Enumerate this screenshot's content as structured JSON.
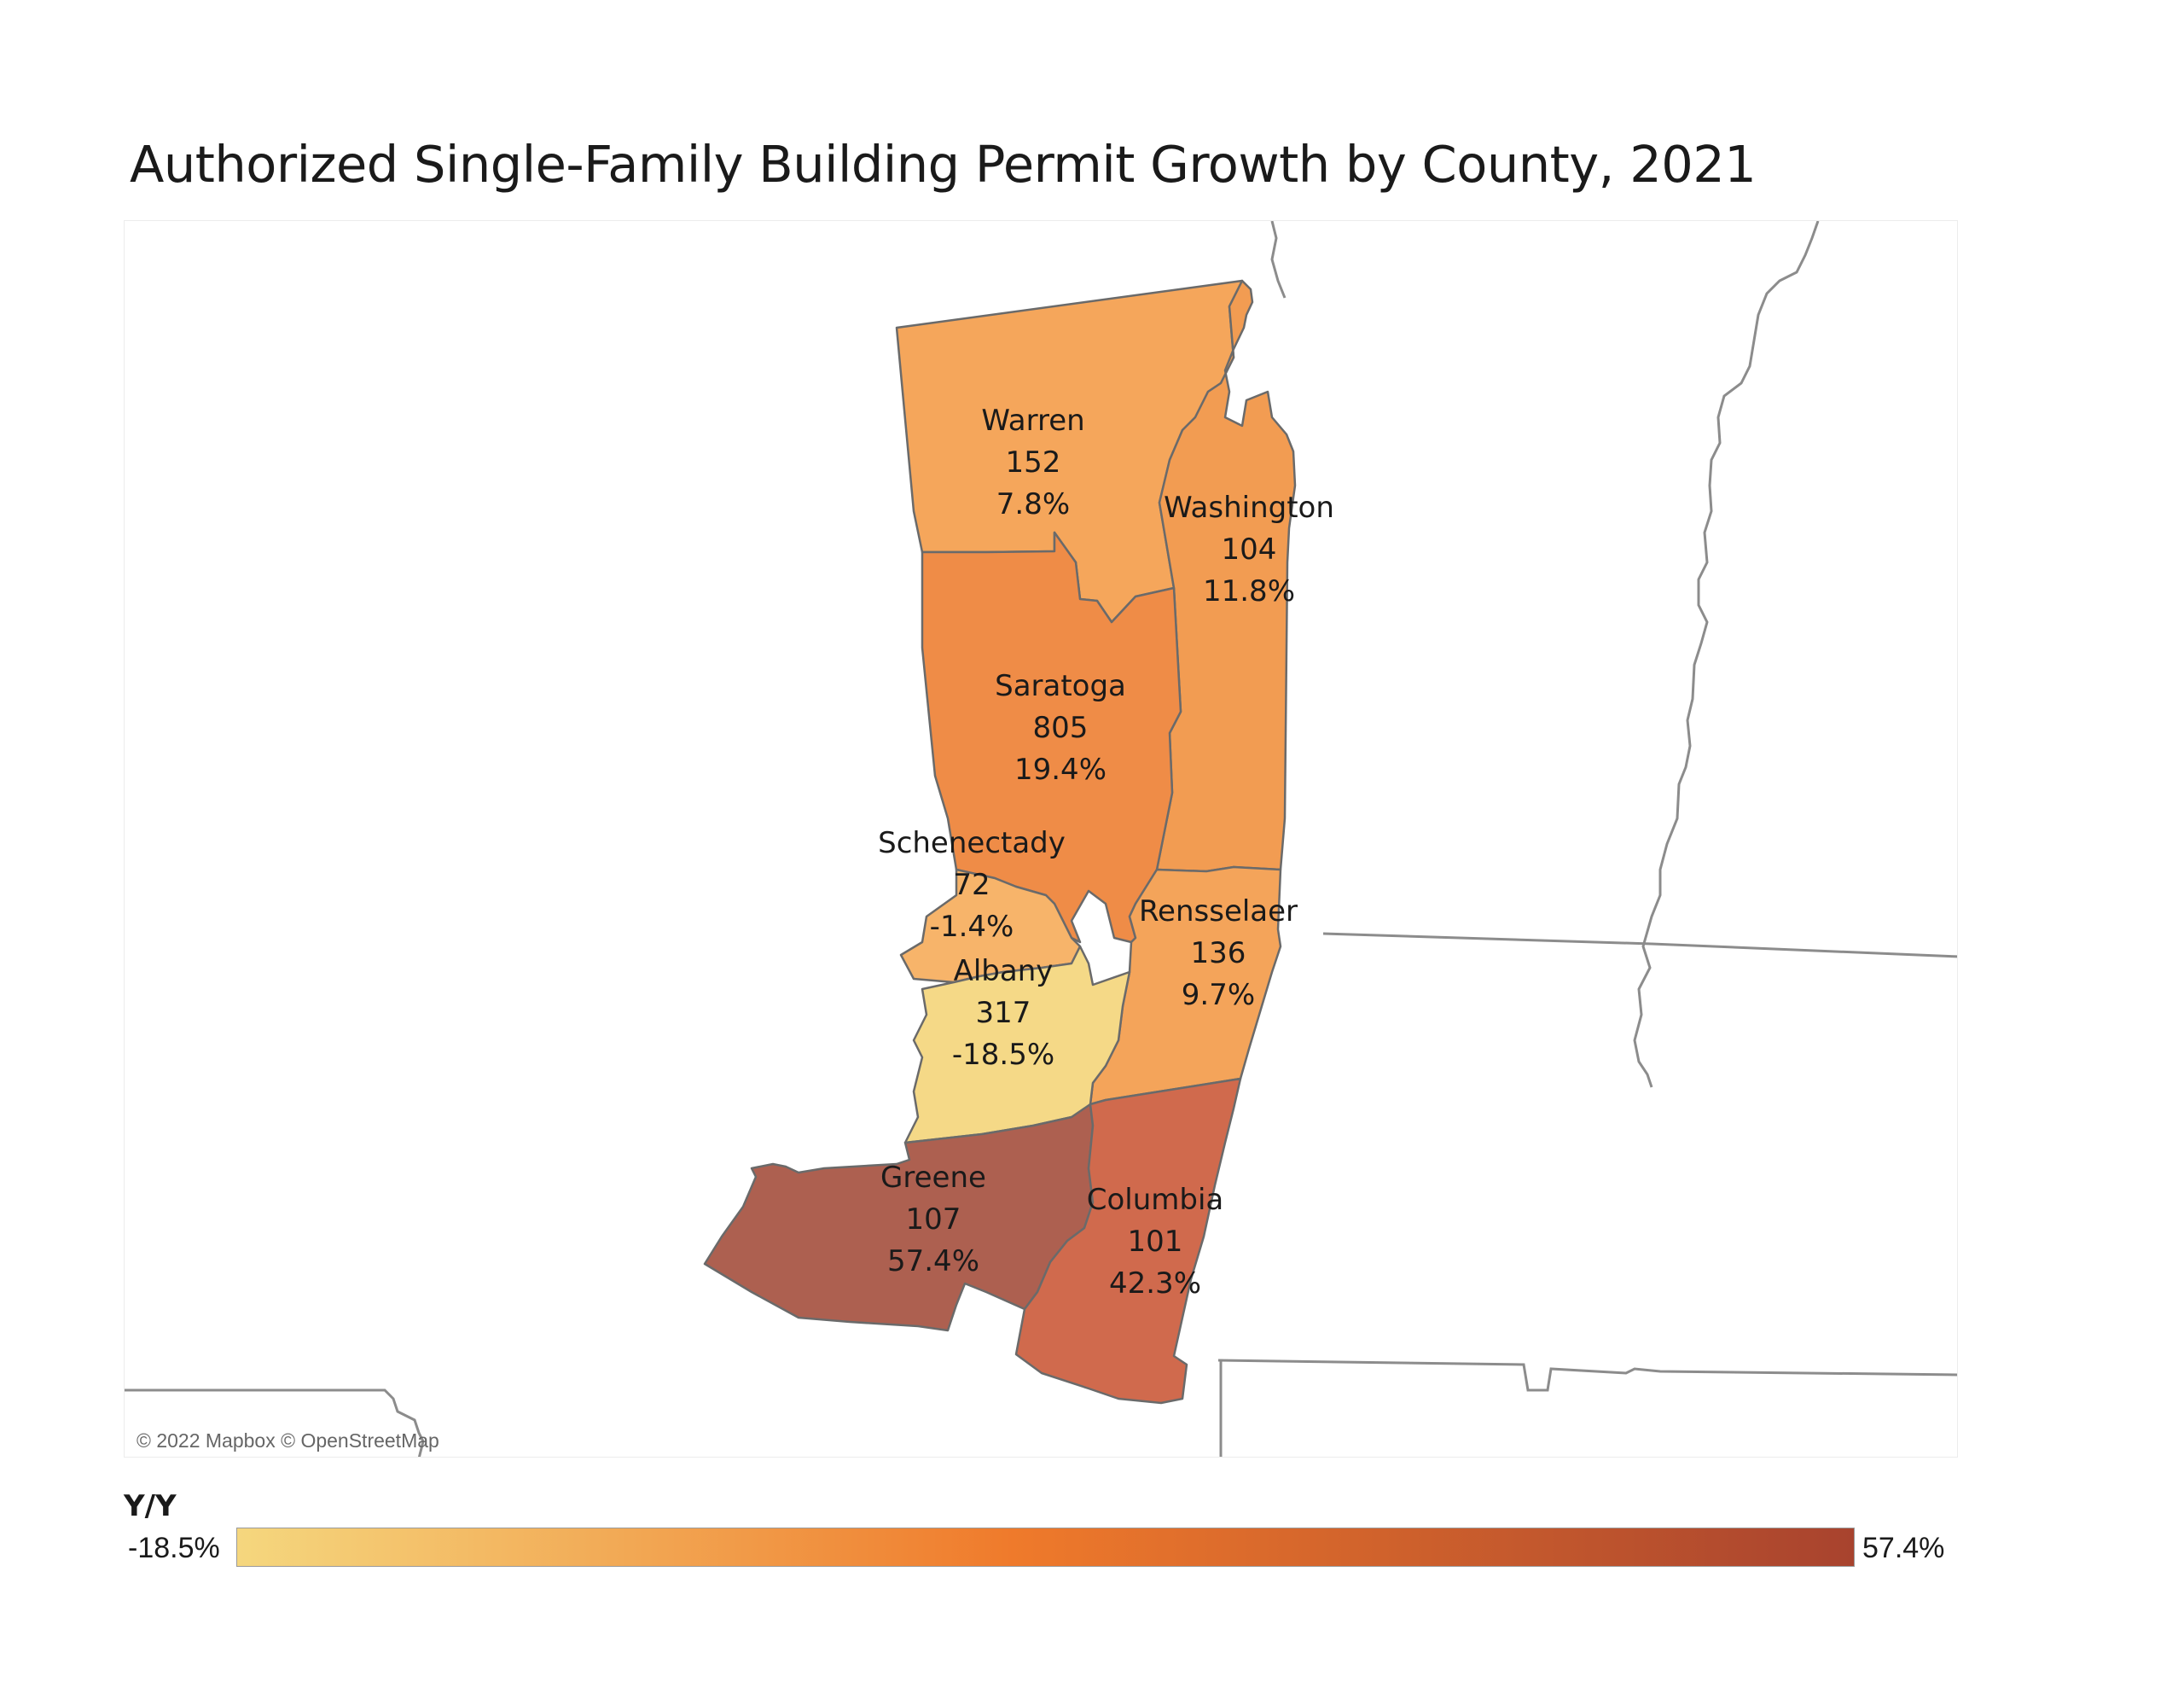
{
  "title": "Authorized Single-Family Building Permit Growth by County, 2021",
  "attribution": "© 2022 Mapbox © OpenStreetMap",
  "legend": {
    "title": "Y/Y",
    "min_label": "-18.5%",
    "max_label": "57.4%",
    "min_value": -18.5,
    "max_value": 57.4,
    "color_low": "#f5d77e",
    "color_mid": "#ef7a2b",
    "color_high": "#a8432e"
  },
  "counties": [
    {
      "name": "Warren",
      "permits": "152",
      "growth": "7.8%",
      "growth_value": 7.8,
      "color": "#f5a65b"
    },
    {
      "name": "Washington",
      "permits": "104",
      "growth": "11.8%",
      "growth_value": 11.8,
      "color": "#f29c52"
    },
    {
      "name": "Saratoga",
      "permits": "805",
      "growth": "19.4%",
      "growth_value": 19.4,
      "color": "#ef8c47"
    },
    {
      "name": "Schenectady",
      "permits": "72",
      "growth": "-1.4%",
      "growth_value": -1.4,
      "color": "#f7b46a"
    },
    {
      "name": "Rensselaer",
      "permits": "136",
      "growth": "9.7%",
      "growth_value": 9.7,
      "color": "#f4a45a"
    },
    {
      "name": "Albany",
      "permits": "317",
      "growth": "-18.5%",
      "growth_value": -18.5,
      "color": "#f5d987"
    },
    {
      "name": "Greene",
      "permits": "107",
      "growth": "57.4%",
      "growth_value": 57.4,
      "color": "#ad6050"
    },
    {
      "name": "Columbia",
      "permits": "101",
      "growth": "42.3%",
      "growth_value": 42.3,
      "color": "#d06a4d"
    }
  ]
}
